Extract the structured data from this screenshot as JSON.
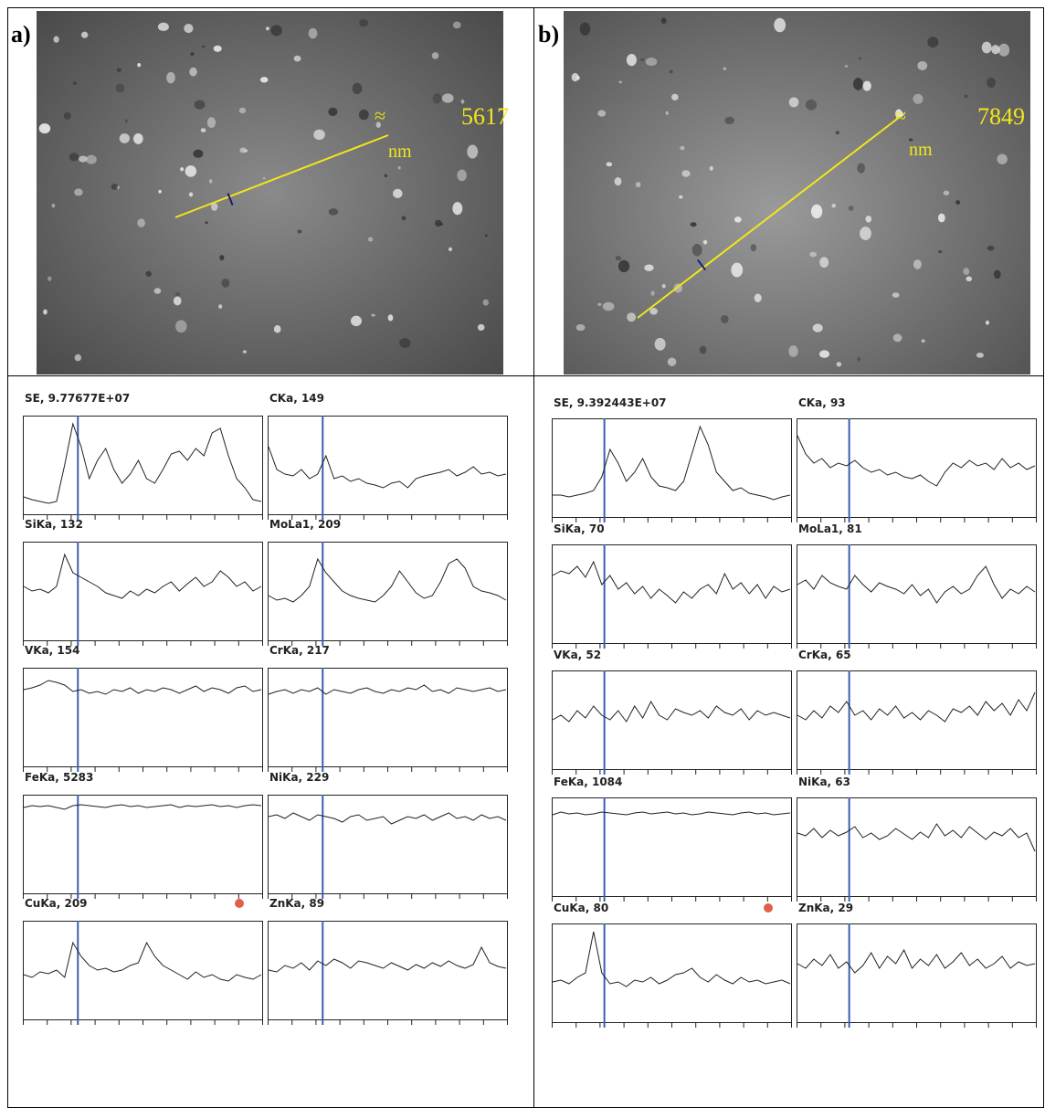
{
  "panels": [
    {
      "label": "a)",
      "scale_symbol": "≈",
      "scale_length": 5617,
      "scale_unit": "nm",
      "profiles": [
        {
          "label": "SE, 9.77677E+07",
          "values": [
            15,
            12,
            10,
            8,
            10,
            50,
            95,
            70,
            35,
            55,
            68,
            45,
            30,
            40,
            55,
            35,
            30,
            45,
            62,
            65,
            55,
            68,
            60,
            85,
            90,
            60,
            35,
            25,
            12,
            10
          ]
        },
        {
          "label": "CKa, 149",
          "values": [
            70,
            45,
            40,
            38,
            45,
            35,
            40,
            60,
            35,
            38,
            32,
            35,
            30,
            28,
            25,
            30,
            32,
            25,
            35,
            38,
            40,
            42,
            45,
            38,
            42,
            48,
            40,
            42,
            38,
            40
          ]
        },
        {
          "label": "SiKa, 132",
          "values": [
            55,
            50,
            52,
            48,
            55,
            90,
            70,
            65,
            60,
            55,
            48,
            45,
            42,
            50,
            45,
            52,
            48,
            55,
            60,
            50,
            58,
            65,
            55,
            60,
            72,
            65,
            55,
            60,
            50,
            55
          ]
        },
        {
          "label": "MoLa1, 209",
          "values": [
            45,
            40,
            42,
            38,
            45,
            55,
            85,
            70,
            60,
            50,
            45,
            42,
            40,
            38,
            45,
            55,
            72,
            60,
            48,
            42,
            45,
            60,
            80,
            85,
            75,
            55,
            50,
            48,
            45,
            40
          ]
        },
        {
          "label": "VKa, 154",
          "values": [
            80,
            82,
            85,
            90,
            88,
            85,
            78,
            80,
            76,
            78,
            75,
            80,
            78,
            82,
            76,
            80,
            78,
            82,
            80,
            76,
            80,
            84,
            78,
            82,
            80,
            76,
            82,
            84,
            78,
            80
          ]
        },
        {
          "label": "CrKa, 217",
          "values": [
            75,
            78,
            80,
            76,
            80,
            78,
            82,
            75,
            80,
            78,
            76,
            80,
            82,
            78,
            76,
            80,
            78,
            82,
            80,
            85,
            78,
            80,
            76,
            82,
            80,
            78,
            80,
            82,
            78,
            80
          ]
        },
        {
          "label": "FeKa, 5283",
          "values": [
            90,
            92,
            91,
            92,
            90,
            88,
            92,
            93,
            92,
            91,
            90,
            92,
            93,
            91,
            92,
            90,
            91,
            92,
            93,
            90,
            92,
            91,
            92,
            93,
            91,
            92,
            90,
            92,
            93,
            92
          ]
        },
        {
          "label": "NiKa, 229",
          "values": [
            80,
            82,
            78,
            84,
            80,
            76,
            82,
            80,
            78,
            74,
            80,
            82,
            76,
            78,
            80,
            72,
            76,
            80,
            78,
            82,
            76,
            80,
            84,
            78,
            80,
            76,
            82,
            78,
            80,
            76
          ]
        },
        {
          "label": "CuKa, 209",
          "values": [
            45,
            42,
            48,
            46,
            50,
            42,
            80,
            65,
            55,
            50,
            52,
            48,
            50,
            55,
            58,
            80,
            65,
            55,
            50,
            45,
            40,
            48,
            42,
            45,
            40,
            38,
            45,
            42,
            40,
            45
          ]
        },
        {
          "label": "ZnKa, 89",
          "values": [
            50,
            48,
            55,
            52,
            58,
            50,
            60,
            55,
            62,
            58,
            52,
            60,
            58,
            55,
            52,
            58,
            54,
            50,
            56,
            52,
            58,
            54,
            60,
            55,
            52,
            56,
            75,
            58,
            54,
            52
          ]
        }
      ]
    },
    {
      "label": "b)",
      "scale_symbol": "≈",
      "scale_length": 7849,
      "scale_unit": "nm",
      "profiles": [
        {
          "label": "SE, 9.392443E+07",
          "values": [
            20,
            20,
            18,
            20,
            22,
            25,
            40,
            70,
            55,
            35,
            45,
            60,
            40,
            30,
            28,
            25,
            35,
            65,
            95,
            75,
            45,
            35,
            25,
            28,
            22,
            20,
            18,
            15,
            18,
            20
          ]
        },
        {
          "label": "CKa, 93",
          "values": [
            85,
            65,
            55,
            60,
            50,
            55,
            52,
            58,
            50,
            45,
            48,
            42,
            45,
            40,
            38,
            42,
            35,
            30,
            45,
            55,
            50,
            58,
            52,
            55,
            48,
            60,
            50,
            55,
            48,
            52
          ]
        },
        {
          "label": "SiKa, 70",
          "values": [
            70,
            75,
            72,
            80,
            68,
            85,
            60,
            70,
            55,
            62,
            50,
            58,
            45,
            55,
            48,
            40,
            52,
            45,
            55,
            60,
            50,
            72,
            55,
            62,
            50,
            60,
            45,
            58,
            52,
            55
          ]
        },
        {
          "label": "MoLa1, 81",
          "values": [
            60,
            65,
            55,
            70,
            62,
            58,
            55,
            70,
            60,
            52,
            62,
            58,
            55,
            50,
            60,
            48,
            55,
            40,
            52,
            58,
            50,
            55,
            70,
            80,
            60,
            45,
            55,
            50,
            58,
            52
          ]
        },
        {
          "label": "VKa, 52",
          "values": [
            50,
            55,
            48,
            60,
            52,
            65,
            55,
            50,
            60,
            48,
            65,
            52,
            70,
            55,
            50,
            62,
            58,
            55,
            60,
            52,
            65,
            58,
            55,
            62,
            50,
            60,
            55,
            58,
            55,
            52
          ]
        },
        {
          "label": "CrKa, 65",
          "values": [
            55,
            50,
            60,
            52,
            65,
            58,
            70,
            55,
            60,
            50,
            62,
            55,
            65,
            52,
            58,
            50,
            60,
            55,
            48,
            62,
            58,
            65,
            55,
            70,
            60,
            68,
            55,
            72,
            60,
            80
          ]
        },
        {
          "label": "FeKa, 1084",
          "values": [
            85,
            88,
            86,
            87,
            85,
            86,
            88,
            87,
            86,
            85,
            87,
            88,
            86,
            87,
            88,
            86,
            87,
            85,
            86,
            88,
            87,
            86,
            85,
            87,
            88,
            86,
            87,
            85,
            86,
            87
          ]
        },
        {
          "label": "NiKa, 63",
          "values": [
            65,
            62,
            70,
            60,
            68,
            62,
            66,
            72,
            60,
            65,
            58,
            62,
            70,
            64,
            58,
            66,
            60,
            75,
            62,
            68,
            60,
            72,
            65,
            58,
            66,
            62,
            70,
            60,
            65,
            45
          ]
        },
        {
          "label": "CuKa, 80",
          "values": [
            40,
            42,
            38,
            45,
            50,
            95,
            50,
            38,
            40,
            35,
            42,
            40,
            45,
            38,
            42,
            48,
            50,
            55,
            45,
            40,
            48,
            42,
            38,
            45,
            40,
            42,
            38,
            40,
            42,
            38
          ]
        },
        {
          "label": "ZnKa, 29",
          "values": [
            60,
            55,
            65,
            58,
            70,
            55,
            62,
            50,
            58,
            72,
            55,
            68,
            60,
            75,
            55,
            65,
            58,
            70,
            55,
            62,
            72,
            58,
            65,
            55,
            60,
            68,
            55,
            62,
            58,
            60
          ]
        }
      ]
    }
  ]
}
